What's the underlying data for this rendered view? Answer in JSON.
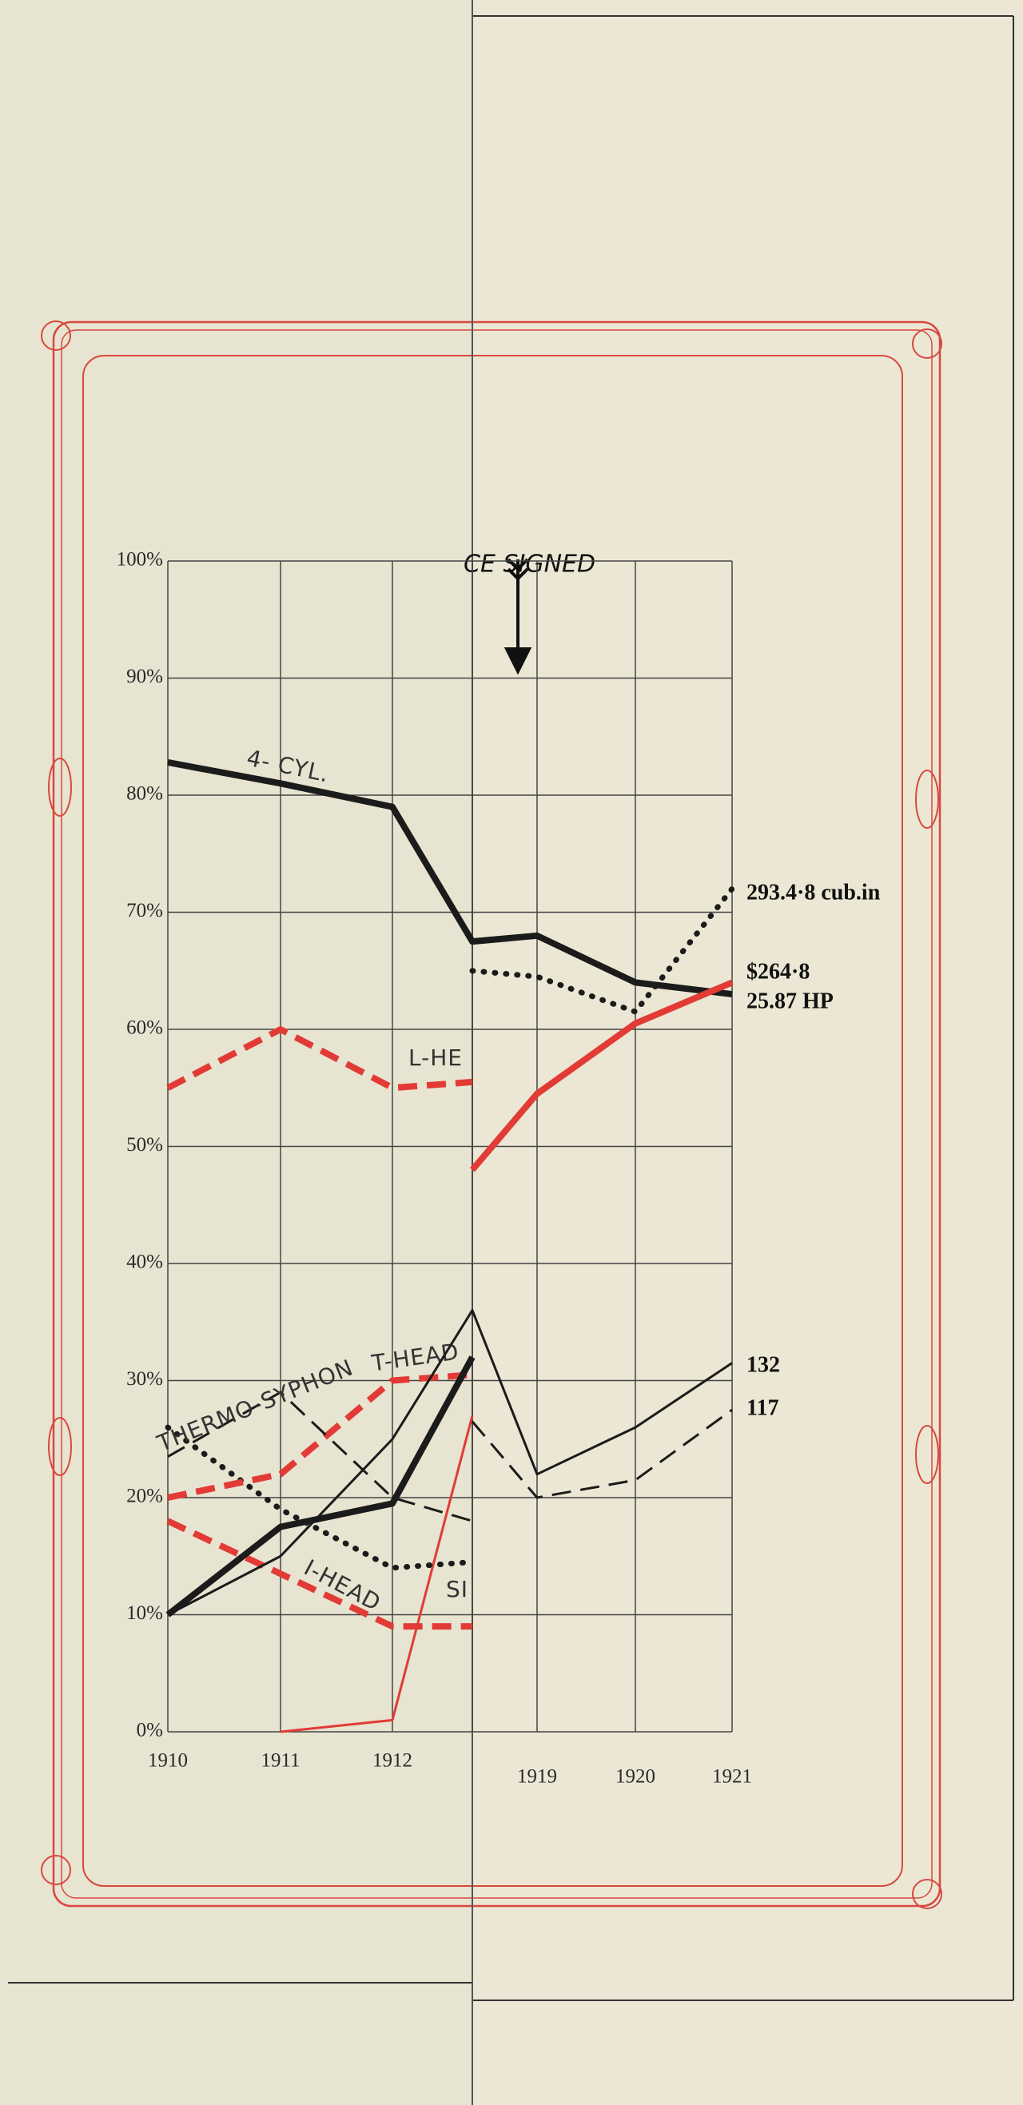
{
  "chart_data": {
    "type": "line",
    "annotation": "CE SIGNED",
    "categories": [
      "1910",
      "1911",
      "1912",
      null,
      "1919",
      "1920",
      "1921"
    ],
    "ylim": [
      0,
      100
    ],
    "yticks": [
      {
        "value": 0,
        "label": "0%"
      },
      {
        "value": 10,
        "label": "10%"
      },
      {
        "value": 20,
        "label": "20%"
      },
      {
        "value": 30,
        "label": "30%"
      },
      {
        "value": 40,
        "label": "40%"
      },
      {
        "value": 50,
        "label": "50%"
      },
      {
        "value": 60,
        "label": "60%"
      },
      {
        "value": 70,
        "label": "70%"
      },
      {
        "value": 80,
        "label": "80%"
      },
      {
        "value": 90,
        "label": "90%"
      },
      {
        "value": 100,
        "label": "100%"
      }
    ],
    "grid": true,
    "series": [
      {
        "name": "4- CYL.",
        "color": "#1b1b1b",
        "style": "solid",
        "weight": "heavy",
        "values": [
          82.8,
          81,
          79,
          67.5,
          68,
          64,
          63
        ],
        "end_label": "25.87 HP"
      },
      {
        "name": "L-HE",
        "color": "#e23b36",
        "style": "dashed",
        "weight": "heavy",
        "values": [
          55,
          60,
          55,
          55.5,
          null,
          null,
          null
        ]
      },
      {
        "color": "#e23b36",
        "style": "solid",
        "weight": "light",
        "values": [
          null,
          0,
          1,
          27,
          null,
          null,
          null
        ]
      },
      {
        "color": "#e23b36",
        "style": "solid",
        "weight": "heavy",
        "values": [
          null,
          null,
          null,
          48,
          54.5,
          60.5,
          64
        ],
        "end_label": "$264·8"
      },
      {
        "color": "#1b1b1b",
        "style": "dotted",
        "weight": "heavy",
        "values": [
          null,
          null,
          null,
          65,
          64.5,
          61.5,
          72
        ],
        "end_label": "293.4·8 cub.in"
      },
      {
        "name": "SI",
        "color": "#1b1b1b",
        "style": "dotted",
        "weight": "heavy",
        "values": [
          26,
          19,
          14,
          14.5,
          null,
          null,
          null
        ]
      },
      {
        "name": "T-HEAD",
        "color": "#e23b36",
        "style": "dashed",
        "weight": "heavy",
        "values": [
          20,
          22,
          30,
          30.5,
          null,
          null,
          null
        ]
      },
      {
        "name": "THERMO-SYPHON",
        "color": "#1b1b1b",
        "style": "dashed",
        "weight": "light",
        "values": [
          23.5,
          29,
          20,
          18,
          null,
          null,
          null
        ]
      },
      {
        "name": "I-HEAD",
        "color": "#e23b36",
        "style": "dashed",
        "weight": "heavy",
        "values": [
          18,
          13.5,
          9,
          9,
          null,
          null,
          null
        ]
      },
      {
        "color": "#1b1b1b",
        "style": "solid",
        "weight": "heavy",
        "values": [
          10,
          17.5,
          19.5,
          32,
          null,
          null,
          null
        ]
      },
      {
        "color": "#1b1b1b",
        "style": "solid",
        "weight": "light",
        "values": [
          10,
          15,
          25,
          36,
          22,
          26,
          31.5
        ],
        "end_label": "132"
      },
      {
        "color": "#1b1b1b",
        "style": "dashed",
        "weight": "light",
        "values": [
          null,
          null,
          null,
          26.5,
          20,
          21.5,
          27.5
        ],
        "end_label": "117"
      }
    ]
  }
}
